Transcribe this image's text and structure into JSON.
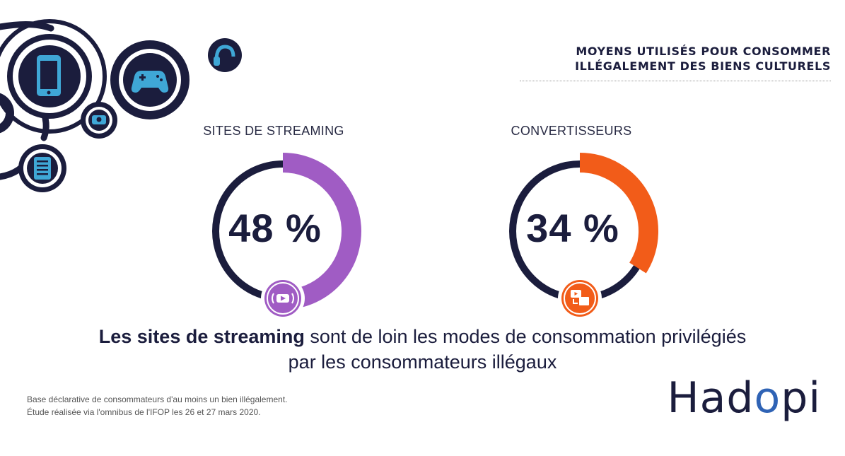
{
  "title": {
    "line1": "MOYENS UTILISÉS POUR CONSOMMER",
    "line2": "ILLÉGALEMENT DES BIENS CULTURELS"
  },
  "colors": {
    "navy": "#1b1d3d",
    "streaming": "#a05cc4",
    "converters": "#f25c19",
    "icon_blue": "#3fa7d6"
  },
  "chart_data": {
    "type": "pie",
    "items": [
      {
        "label": "SITES DE STREAMING",
        "value": 48,
        "display": "48 %",
        "color": "#a05cc4",
        "icon": "streaming-play-icon"
      },
      {
        "label": "CONVERTISSEURS",
        "value": 34,
        "display": "34 %",
        "color": "#f25c19",
        "icon": "video-to-mp3-icon"
      }
    ]
  },
  "headline": {
    "bold": "Les sites de streaming",
    "rest": " sont de loin les modes de consommation privilégiés",
    "line2": "par les consommateurs illégaux"
  },
  "footnote": {
    "line1": "Base déclarative de consommateurs d'au moins un bien illégalement.",
    "line2": "Étude réalisée via l'omnibus de l'IFOP les 26 et 27 mars 2020."
  },
  "brand": {
    "before": "Had",
    "o": "o",
    "after": "pi"
  }
}
